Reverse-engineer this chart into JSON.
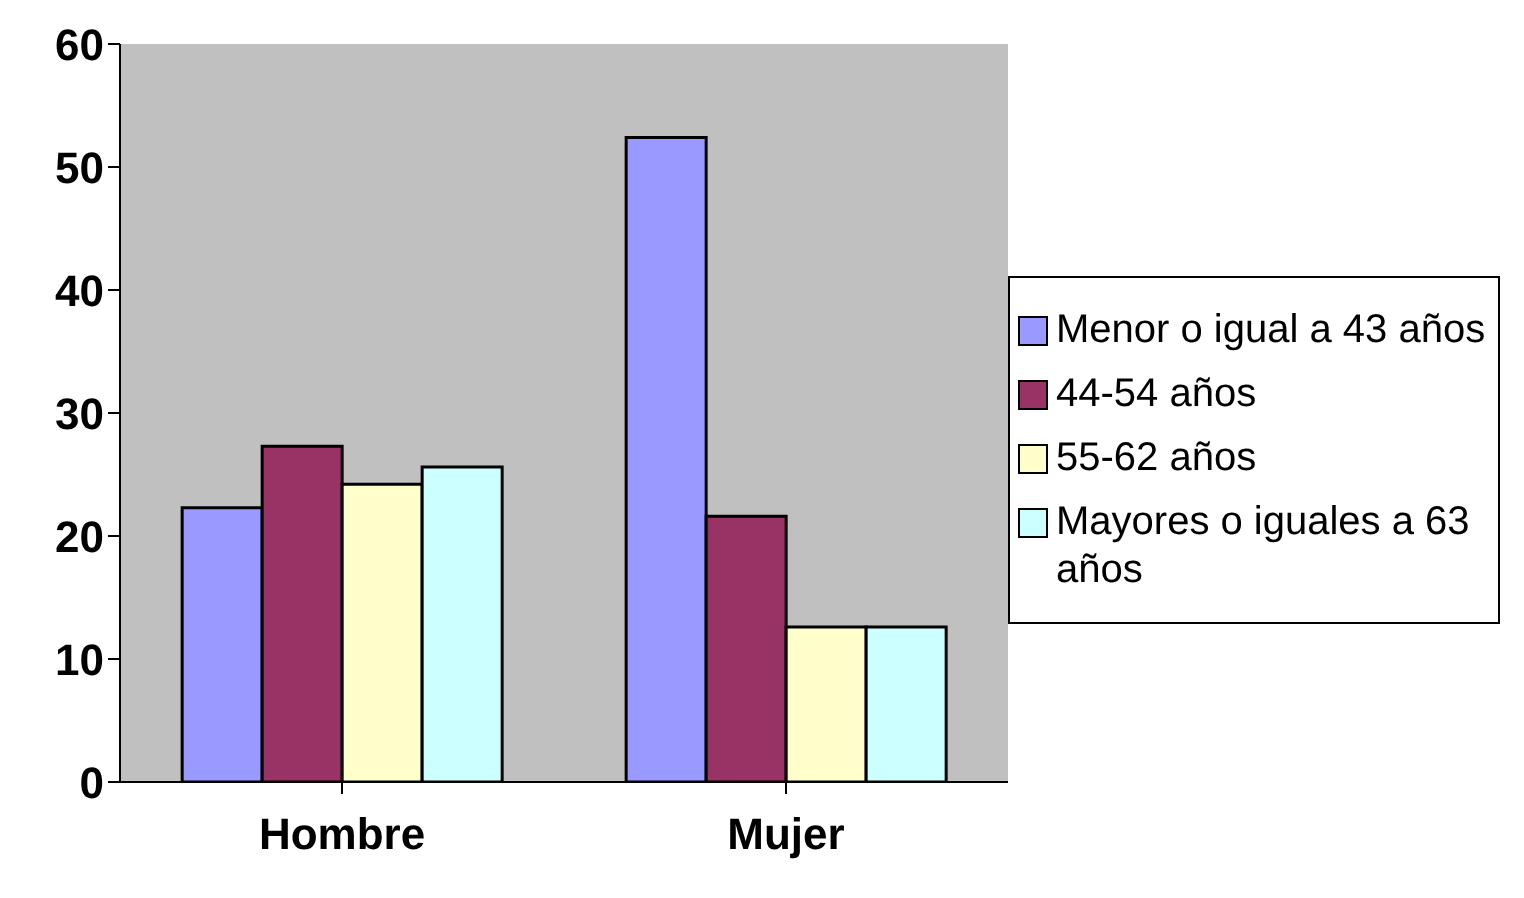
{
  "chart_data": {
    "type": "bar",
    "categories": [
      "Hombre",
      "Mujer"
    ],
    "series": [
      {
        "name": "Menor o igual a 43 años",
        "color": "#9999ff",
        "values": [
          22.3,
          52.4
        ]
      },
      {
        "name": "44-54 años",
        "color": "#993366",
        "values": [
          27.3,
          21.6
        ]
      },
      {
        "name": "55-62 años",
        "color": "#ffffcc",
        "values": [
          24.2,
          12.6
        ]
      },
      {
        "name": "Mayores o iguales a 63 años",
        "color": "#ccffff",
        "values": [
          25.6,
          12.6
        ]
      }
    ],
    "ylim": [
      0,
      60
    ],
    "yticks": [
      0,
      10,
      20,
      30,
      40,
      50,
      60
    ],
    "grid": false,
    "legend": "right"
  }
}
